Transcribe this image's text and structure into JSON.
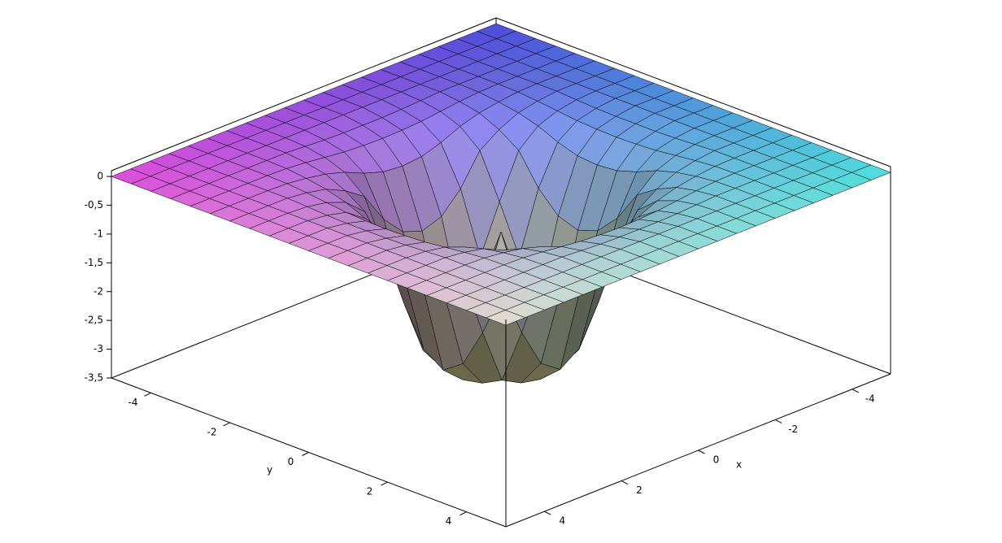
{
  "chart_data": {
    "type": "surface",
    "xlabel": "x",
    "ylabel": "y",
    "x": [
      -5,
      -4.5,
      -4,
      -3.5,
      -3,
      -2.5,
      -2,
      -1.5,
      -1,
      -0.5,
      0,
      0.5,
      1,
      1.5,
      2,
      2.5,
      3,
      3.5,
      4,
      4.5,
      5
    ],
    "y": [
      -5,
      -4.5,
      -4,
      -3.5,
      -3,
      -2.5,
      -2,
      -1.5,
      -1,
      -0.5,
      0,
      0.5,
      1,
      1.5,
      2,
      2.5,
      3,
      3.5,
      4,
      4.5,
      5
    ],
    "xlim": [
      -5,
      5
    ],
    "ylim": [
      -5,
      5
    ],
    "zlim": [
      -3.5,
      0.1
    ],
    "xticks": [
      -4,
      -2,
      0,
      2,
      4
    ],
    "yticks": [
      -4,
      -2,
      0,
      2,
      4
    ],
    "zticks": [
      0,
      {
        "value": -0.5,
        "label": "-0,5"
      },
      -1,
      {
        "value": -1.5,
        "label": "-1,5"
      },
      -2,
      {
        "value": -2.5,
        "label": "-2,5"
      },
      -3,
      {
        "value": -3.5,
        "label": "-3,5"
      }
    ],
    "corner_colors": {
      "front": "#f4f0e4",
      "left": "#f050f0",
      "back": "#5050f0",
      "right": "#50f0f0"
    },
    "depth_color": "#b8b850",
    "mesh_color": "#000000",
    "z": [
      [
        0,
        0,
        0,
        0,
        0,
        0,
        0,
        0,
        0,
        0,
        0,
        0,
        0,
        0,
        0,
        0,
        0,
        0,
        0,
        0,
        0
      ],
      [
        0,
        0,
        0,
        0,
        0,
        0,
        0,
        0,
        0,
        0,
        0,
        0,
        0,
        0,
        0,
        0,
        0,
        0,
        0,
        0,
        0
      ],
      [
        0,
        0,
        0,
        0,
        0,
        0,
        0,
        0,
        0,
        0,
        0,
        0,
        0,
        0,
        0,
        0,
        0,
        0,
        0,
        0,
        0
      ],
      [
        0,
        0,
        0,
        0,
        0,
        0,
        0,
        -0.02,
        -0.04,
        -0.05,
        -0.05,
        -0.05,
        -0.04,
        -0.02,
        0,
        0,
        0,
        0,
        0,
        0,
        0
      ],
      [
        0,
        0,
        0,
        0,
        0,
        -0.01,
        -0.04,
        -0.08,
        -0.12,
        -0.14,
        -0.15,
        -0.14,
        -0.12,
        -0.08,
        -0.04,
        -0.01,
        0,
        0,
        0,
        0,
        0
      ],
      [
        0,
        0,
        0,
        0,
        -0.01,
        -0.05,
        -0.11,
        -0.21,
        -0.36,
        -0.47,
        -0.5,
        -0.47,
        -0.36,
        -0.21,
        -0.11,
        -0.05,
        -0.01,
        0,
        0,
        0,
        0
      ],
      [
        0,
        0,
        0,
        0,
        -0.04,
        -0.11,
        -0.27,
        -0.5,
        -1.03,
        -1.38,
        -1.5,
        -1.38,
        -1.03,
        -0.5,
        -0.27,
        -0.11,
        -0.04,
        0,
        0,
        0,
        0
      ],
      [
        0,
        0,
        0,
        -0.02,
        -0.08,
        -0.21,
        -0.5,
        -1.26,
        -2.09,
        -2.76,
        -3,
        -2.76,
        -2.09,
        -1.26,
        -0.5,
        -0.21,
        -0.08,
        -0.02,
        0,
        0,
        0
      ],
      [
        0,
        0,
        0,
        -0.04,
        -0.12,
        -0.36,
        -1.03,
        -2.09,
        -3.05,
        -3.23,
        -3.3,
        -3.23,
        -3.05,
        -2.09,
        -1.03,
        -0.36,
        -0.12,
        -0.04,
        0,
        0,
        0
      ],
      [
        0,
        0,
        0,
        -0.05,
        -0.14,
        -0.47,
        -1.38,
        -2.76,
        -3.23,
        -2.54,
        -2,
        -2.54,
        -3.23,
        -2.76,
        -1.38,
        -0.47,
        -0.14,
        -0.05,
        0,
        0,
        0
      ],
      [
        0,
        0,
        0,
        -0.05,
        -0.15,
        -0.5,
        -1.5,
        -3,
        -3.3,
        -2,
        -1,
        -2,
        -3.3,
        -3,
        -1.5,
        -0.5,
        -0.15,
        -0.05,
        0,
        0,
        0
      ],
      [
        0,
        0,
        0,
        -0.05,
        -0.14,
        -0.47,
        -1.38,
        -2.76,
        -3.23,
        -2.54,
        -2,
        -2.54,
        -3.23,
        -2.76,
        -1.38,
        -0.47,
        -0.14,
        -0.05,
        0,
        0,
        0
      ],
      [
        0,
        0,
        0,
        -0.04,
        -0.12,
        -0.36,
        -1.03,
        -2.09,
        -3.05,
        -3.23,
        -3.3,
        -3.23,
        -3.05,
        -2.09,
        -1.03,
        -0.36,
        -0.12,
        -0.04,
        0,
        0,
        0
      ],
      [
        0,
        0,
        0,
        -0.02,
        -0.08,
        -0.21,
        -0.5,
        -1.26,
        -2.09,
        -2.76,
        -3,
        -2.76,
        -2.09,
        -1.26,
        -0.5,
        -0.21,
        -0.08,
        -0.02,
        0,
        0,
        0
      ],
      [
        0,
        0,
        0,
        0,
        -0.04,
        -0.11,
        -0.27,
        -0.5,
        -1.03,
        -1.38,
        -1.5,
        -1.38,
        -1.03,
        -0.5,
        -0.27,
        -0.11,
        -0.04,
        0,
        0,
        0,
        0
      ],
      [
        0,
        0,
        0,
        0,
        -0.01,
        -0.05,
        -0.11,
        -0.21,
        -0.36,
        -0.47,
        -0.5,
        -0.47,
        -0.36,
        -0.21,
        -0.11,
        -0.05,
        -0.01,
        0,
        0,
        0,
        0
      ],
      [
        0,
        0,
        0,
        0,
        0,
        -0.01,
        -0.04,
        -0.08,
        -0.12,
        -0.14,
        -0.15,
        -0.14,
        -0.12,
        -0.08,
        -0.04,
        -0.01,
        0,
        0,
        0,
        0,
        0
      ],
      [
        0,
        0,
        0,
        0,
        0,
        0,
        0,
        -0.02,
        -0.04,
        -0.05,
        -0.05,
        -0.05,
        -0.04,
        -0.02,
        0,
        0,
        0,
        0,
        0,
        0,
        0
      ],
      [
        0,
        0,
        0,
        0,
        0,
        0,
        0,
        0,
        0,
        0,
        0,
        0,
        0,
        0,
        0,
        0,
        0,
        0,
        0,
        0,
        0
      ],
      [
        0,
        0,
        0,
        0,
        0,
        0,
        0,
        0,
        0,
        0,
        0,
        0,
        0,
        0,
        0,
        0,
        0,
        0,
        0,
        0,
        0
      ],
      [
        0,
        0,
        0,
        0,
        0,
        0,
        0,
        0,
        0,
        0,
        0,
        0,
        0,
        0,
        0,
        0,
        0,
        0,
        0,
        0,
        0
      ]
    ]
  }
}
